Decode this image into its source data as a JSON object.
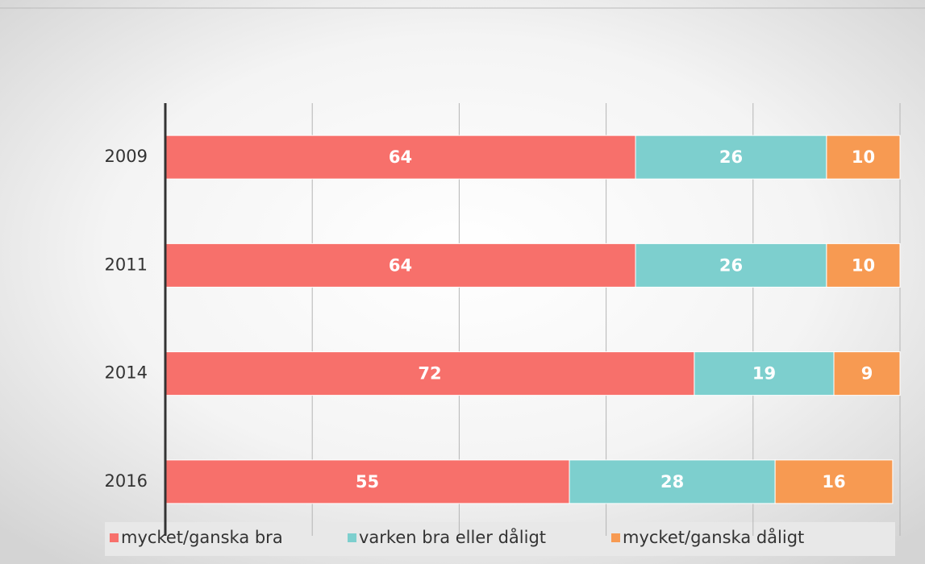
{
  "chart_data": {
    "type": "stacked-bar-horizontal",
    "categories": [
      "2009",
      "2011",
      "2014",
      "2016"
    ],
    "series": [
      {
        "name": "mycket/ganska bra",
        "color": "#f7706b",
        "values": [
          64,
          64,
          72,
          55
        ]
      },
      {
        "name": "varken bra eller dåligt",
        "color": "#7dcfce",
        "values": [
          26,
          26,
          19,
          28
        ]
      },
      {
        "name": "mycket/ganska dåligt",
        "color": "#f79a52",
        "values": [
          10,
          10,
          9,
          16
        ]
      }
    ],
    "xlim": [
      0,
      100
    ],
    "xticks": [
      0,
      20,
      40,
      60,
      80,
      100
    ],
    "grid": true
  }
}
